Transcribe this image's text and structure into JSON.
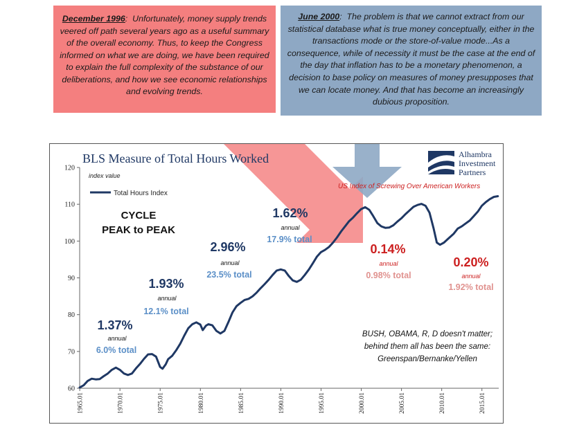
{
  "quotes": {
    "left": {
      "date": "December 1996",
      "text": "Unfortunately, money supply trends veered off path several years ago as a useful summary of the overall economy. Thus, to keep the Congress informed on what we are doing, we have been required to explain the full complexity of the substance of our deliberations, and how we see economic relationships and evolving trends.",
      "color": "#f47f7f"
    },
    "right": {
      "date": "June 2000",
      "text": "The problem is that we cannot extract from our statistical database what is true money conceptually, either in the transactions mode or the store-of-value mode...As a consequence, while of necessity it must be the case at the end of the day that inflation has to be a monetary phenomenon, a decision to base policy on measures of money presupposes that we can locate money. And that has become an increasingly dubious proposition.",
      "color": "#8ea8c4"
    }
  },
  "chart_data": {
    "type": "line",
    "title": "BLS Measure of Total Hours Worked",
    "ylabel": "index value",
    "ylim": [
      60,
      120
    ],
    "yticks": [
      60,
      70,
      80,
      90,
      100,
      110,
      120
    ],
    "xlim": [
      1965.0,
      2017.1
    ],
    "xticks": [
      "1965.01",
      "1970.01",
      "1975.01",
      "1980.01",
      "1985.01",
      "1990.01",
      "1995.01",
      "2000.01",
      "2005.01",
      "2010.01",
      "2015.01"
    ],
    "legend": "top-left",
    "series": [
      {
        "name": "Total Hours Index",
        "color": "#1f3864",
        "points": [
          [
            1965.0,
            60.2
          ],
          [
            1965.5,
            60.8
          ],
          [
            1966.0,
            62.0
          ],
          [
            1966.5,
            62.6
          ],
          [
            1967.0,
            62.4
          ],
          [
            1967.5,
            62.5
          ],
          [
            1968.0,
            63.3
          ],
          [
            1968.5,
            64.0
          ],
          [
            1969.0,
            65.0
          ],
          [
            1969.5,
            65.6
          ],
          [
            1970.0,
            65.0
          ],
          [
            1970.5,
            64.0
          ],
          [
            1971.0,
            63.6
          ],
          [
            1971.5,
            64.0
          ],
          [
            1972.0,
            65.4
          ],
          [
            1972.5,
            66.6
          ],
          [
            1973.0,
            68.0
          ],
          [
            1973.5,
            69.2
          ],
          [
            1974.0,
            69.3
          ],
          [
            1974.5,
            68.6
          ],
          [
            1975.0,
            65.8
          ],
          [
            1975.3,
            65.3
          ],
          [
            1975.7,
            66.5
          ],
          [
            1976.0,
            67.9
          ],
          [
            1976.5,
            68.8
          ],
          [
            1977.0,
            70.3
          ],
          [
            1977.5,
            72.1
          ],
          [
            1978.0,
            74.3
          ],
          [
            1978.5,
            76.3
          ],
          [
            1979.0,
            77.4
          ],
          [
            1979.5,
            77.9
          ],
          [
            1980.0,
            77.3
          ],
          [
            1980.3,
            75.8
          ],
          [
            1980.7,
            77.0
          ],
          [
            1981.0,
            77.4
          ],
          [
            1981.5,
            77.1
          ],
          [
            1982.0,
            75.6
          ],
          [
            1982.5,
            74.9
          ],
          [
            1983.0,
            75.6
          ],
          [
            1983.5,
            78.0
          ],
          [
            1984.0,
            80.6
          ],
          [
            1984.5,
            82.3
          ],
          [
            1985.0,
            83.2
          ],
          [
            1985.5,
            84.0
          ],
          [
            1986.0,
            84.3
          ],
          [
            1986.5,
            85.0
          ],
          [
            1987.0,
            86.0
          ],
          [
            1987.5,
            87.2
          ],
          [
            1988.0,
            88.3
          ],
          [
            1988.5,
            89.5
          ],
          [
            1989.0,
            90.8
          ],
          [
            1989.5,
            92.0
          ],
          [
            1990.0,
            92.3
          ],
          [
            1990.5,
            92.0
          ],
          [
            1991.0,
            90.5
          ],
          [
            1991.5,
            89.3
          ],
          [
            1992.0,
            88.9
          ],
          [
            1992.5,
            89.5
          ],
          [
            1993.0,
            90.8
          ],
          [
            1993.5,
            92.3
          ],
          [
            1994.0,
            94.0
          ],
          [
            1994.5,
            95.8
          ],
          [
            1995.0,
            97.0
          ],
          [
            1995.5,
            97.6
          ],
          [
            1996.0,
            98.4
          ],
          [
            1996.5,
            99.6
          ],
          [
            1997.0,
            101.0
          ],
          [
            1997.5,
            102.6
          ],
          [
            1998.0,
            104.0
          ],
          [
            1998.5,
            105.4
          ],
          [
            1999.0,
            106.4
          ],
          [
            1999.5,
            107.6
          ],
          [
            2000.0,
            108.7
          ],
          [
            2000.5,
            109.2
          ],
          [
            2001.0,
            108.5
          ],
          [
            2001.5,
            106.8
          ],
          [
            2002.0,
            104.9
          ],
          [
            2002.5,
            104.0
          ],
          [
            2003.0,
            103.6
          ],
          [
            2003.5,
            103.7
          ],
          [
            2004.0,
            104.3
          ],
          [
            2004.5,
            105.3
          ],
          [
            2005.0,
            106.2
          ],
          [
            2005.5,
            107.3
          ],
          [
            2006.0,
            108.3
          ],
          [
            2006.5,
            109.3
          ],
          [
            2007.0,
            109.8
          ],
          [
            2007.5,
            110.1
          ],
          [
            2008.0,
            109.6
          ],
          [
            2008.5,
            107.7
          ],
          [
            2009.0,
            103.5
          ],
          [
            2009.4,
            99.6
          ],
          [
            2009.8,
            99.0
          ],
          [
            2010.3,
            99.6
          ],
          [
            2010.8,
            100.6
          ],
          [
            2011.5,
            102.0
          ],
          [
            2012.0,
            103.4
          ],
          [
            2012.5,
            104.0
          ],
          [
            2013.0,
            104.8
          ],
          [
            2013.5,
            105.6
          ],
          [
            2014.0,
            106.8
          ],
          [
            2014.5,
            108.0
          ],
          [
            2015.0,
            109.6
          ],
          [
            2015.5,
            110.6
          ],
          [
            2016.0,
            111.4
          ],
          [
            2016.5,
            112.0
          ],
          [
            2017.0,
            112.2
          ]
        ]
      }
    ]
  },
  "logo": {
    "line1": "Alhambra",
    "line2": "Investment",
    "line3": "Partners"
  },
  "annotations": {
    "cycle_line1": "CYCLE",
    "cycle_line2": "PEAK to PEAK",
    "us_index": "US Index of Screwing Over American Workers",
    "c1": {
      "pct": "1.37%",
      "annual": "annual",
      "total": "6.0% total"
    },
    "c2": {
      "pct": "1.93%",
      "annual": "annual",
      "total": "12.1% total"
    },
    "c3": {
      "pct": "2.96%",
      "annual": "annual",
      "total": "23.5% total"
    },
    "c4": {
      "pct": "1.62%",
      "annual": "annual",
      "total": "17.9% total"
    },
    "c5": {
      "pct": "0.14%",
      "annual": "annual",
      "total": "0.98% total"
    },
    "c6": {
      "pct": "0.20%",
      "annual": "annual",
      "total": "1.92% total"
    },
    "note_line1": "BUSH, OBAMA, R, D doesn't matter;",
    "note_line2": "behind them all has been the same:",
    "note_line3": "Greenspan/Bernanke/Yellen"
  },
  "colors": {
    "line": "#1f3864",
    "navy_text": "#1f3864",
    "light_blue_text": "#5b8fc7",
    "red_text": "#cc1f1f",
    "pink_text": "#e0928f",
    "red_arrow": "#f47f7f",
    "blue_arrow": "#8ea8c4"
  }
}
